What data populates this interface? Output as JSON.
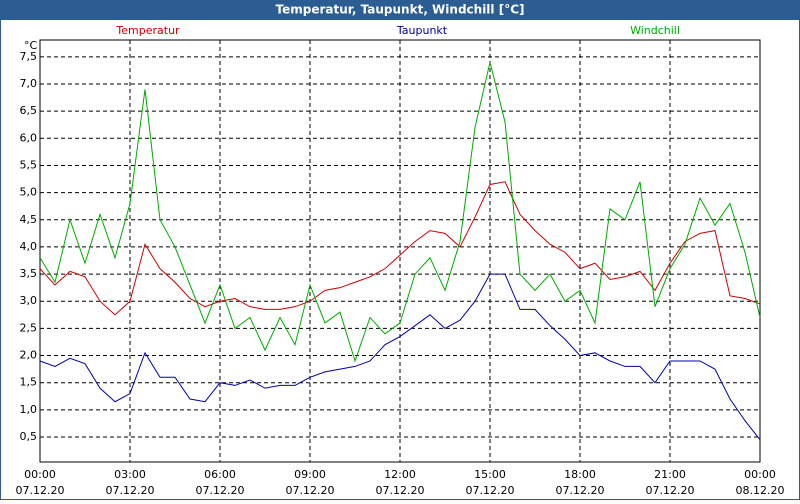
{
  "chart_data": {
    "type": "line",
    "title": "Temperatur, Taupunkt, Windchill [°C]",
    "y_label": "°C",
    "x": [
      0,
      0.5,
      1,
      1.5,
      2,
      2.5,
      3,
      3.5,
      4,
      4.5,
      5,
      5.5,
      6,
      6.5,
      7,
      7.5,
      8,
      8.5,
      9,
      9.5,
      10,
      10.5,
      11,
      11.5,
      12,
      12.5,
      13,
      13.5,
      14,
      14.5,
      15,
      15.5,
      16,
      16.5,
      17,
      17.5,
      18,
      18.5,
      19,
      19.5,
      20,
      20.5,
      21,
      21.5,
      22,
      22.5,
      23,
      23.5,
      24
    ],
    "series": [
      {
        "name": "Temperatur",
        "color": "#cc0000",
        "values": [
          3.6,
          3.3,
          3.55,
          3.45,
          3.0,
          2.75,
          3.0,
          4.05,
          3.6,
          3.35,
          3.05,
          2.9,
          3.0,
          3.05,
          2.9,
          2.85,
          2.85,
          2.9,
          3.0,
          3.2,
          3.25,
          3.35,
          3.45,
          3.6,
          3.85,
          4.1,
          4.3,
          4.25,
          4.0,
          4.55,
          5.15,
          5.2,
          4.6,
          4.3,
          4.05,
          3.9,
          3.6,
          3.7,
          3.4,
          3.45,
          3.55,
          3.2,
          3.7,
          4.1,
          4.25,
          4.3,
          3.1,
          3.05,
          2.95
        ]
      },
      {
        "name": "Taupunkt",
        "color": "#0000aa",
        "values": [
          1.9,
          1.8,
          1.95,
          1.85,
          1.4,
          1.15,
          1.3,
          2.05,
          1.6,
          1.6,
          1.2,
          1.15,
          1.5,
          1.45,
          1.55,
          1.4,
          1.45,
          1.45,
          1.6,
          1.7,
          1.75,
          1.8,
          1.9,
          2.2,
          2.35,
          2.55,
          2.75,
          2.5,
          2.65,
          3.0,
          3.5,
          3.5,
          2.85,
          2.85,
          2.55,
          2.3,
          2.0,
          2.05,
          1.9,
          1.8,
          1.8,
          1.5,
          1.9,
          1.9,
          1.9,
          1.75,
          1.2,
          0.8,
          0.45
        ]
      },
      {
        "name": "Windchill",
        "color": "#00aa00",
        "values": [
          3.8,
          3.35,
          4.5,
          3.7,
          4.6,
          3.8,
          4.8,
          6.9,
          4.5,
          4.0,
          3.3,
          2.6,
          3.3,
          2.5,
          2.7,
          2.1,
          2.7,
          2.2,
          3.3,
          2.6,
          2.8,
          1.9,
          2.7,
          2.4,
          2.6,
          3.5,
          3.8,
          3.2,
          4.1,
          6.2,
          7.4,
          6.3,
          3.5,
          3.2,
          3.5,
          3.0,
          3.2,
          2.6,
          4.7,
          4.5,
          5.2,
          2.9,
          3.6,
          4.05,
          4.9,
          4.4,
          4.8,
          3.9,
          2.7
        ]
      }
    ],
    "xlim": [
      0,
      24
    ],
    "xticks": [
      {
        "value": 0,
        "label": "00:00",
        "date": "07.12.20"
      },
      {
        "value": 3,
        "label": "03:00",
        "date": "07.12.20"
      },
      {
        "value": 6,
        "label": "06:00",
        "date": "07.12.20"
      },
      {
        "value": 9,
        "label": "09:00",
        "date": "07.12.20"
      },
      {
        "value": 12,
        "label": "12:00",
        "date": "07.12.20"
      },
      {
        "value": 15,
        "label": "15:00",
        "date": "07.12.20"
      },
      {
        "value": 18,
        "label": "18:00",
        "date": "07.12.20"
      },
      {
        "value": 21,
        "label": "21:00",
        "date": "07.12.20"
      },
      {
        "value": 24,
        "label": "00:00",
        "date": "08.12.20"
      }
    ],
    "ylim": [
      0.04,
      7.81
    ],
    "yticks": [
      {
        "value": 0.5,
        "label": "0,5"
      },
      {
        "value": 1,
        "label": "1,0"
      },
      {
        "value": 1.5,
        "label": "1,5"
      },
      {
        "value": 2,
        "label": "2,0"
      },
      {
        "value": 2.5,
        "label": "2,5"
      },
      {
        "value": 3,
        "label": "3,0"
      },
      {
        "value": 3.5,
        "label": "3,5"
      },
      {
        "value": 4,
        "label": "4,0"
      },
      {
        "value": 4.5,
        "label": "4,5"
      },
      {
        "value": 5,
        "label": "5,0"
      },
      {
        "value": 5.5,
        "label": "5,5"
      },
      {
        "value": 6,
        "label": "6,0"
      },
      {
        "value": 6.5,
        "label": "6,5"
      },
      {
        "value": 7,
        "label": "7,0"
      },
      {
        "value": 7.5,
        "label": "7,5"
      }
    ],
    "grid": true
  }
}
